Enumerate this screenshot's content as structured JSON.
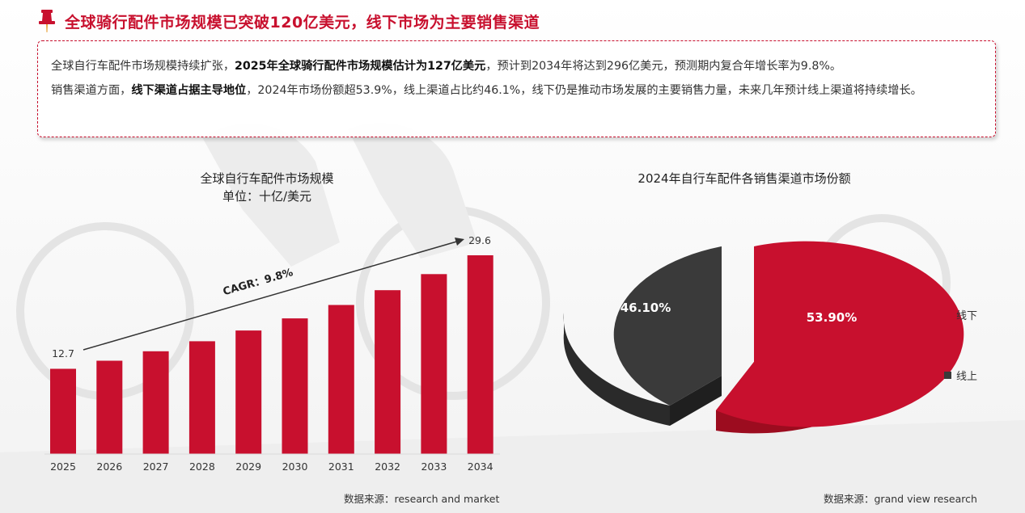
{
  "header": {
    "title": "全球骑行配件市场规模已突破120亿美元，线下市场为主要销售渠道"
  },
  "summary": {
    "p1_a": "全球自行车配件市场规模持续扩张，",
    "p1_b": "2025年全球骑行配件市场规模估计为127亿美元",
    "p1_c": "，预计到2034年将达到296亿美元，预测期内复合年增长率为9.8%。",
    "p2_a": "销售渠道方面，",
    "p2_b": "线下渠道占据主导地位",
    "p2_c": "，2024年市场份额超53.9%，线上渠道占比约46.1%，线下仍是推动市场发展的主要销售力量，未来几年预计线上渠道将持续增长。"
  },
  "bar_chart": {
    "title": "全球自行车配件市场规模",
    "subtitle": "单位：十亿/美元",
    "cagr_label": "CAGR：9.8%",
    "first_label": "12.7",
    "last_label": "29.6",
    "source": "数据来源：research and market",
    "color": "#c8102e"
  },
  "pie_chart": {
    "title": "2024年自行车配件各销售渠道市场份额",
    "source": "数据来源：grand view research",
    "slices": [
      {
        "label": "线下",
        "value_label": "53.90%",
        "color": "#c8102e"
      },
      {
        "label": "线上",
        "value_label": "46.10%",
        "color": "#3a3a3a"
      }
    ]
  },
  "chart_data": [
    {
      "type": "bar",
      "title": "全球自行车配件市场规模",
      "subtitle": "单位：十亿/美元",
      "categories": [
        "2025",
        "2026",
        "2027",
        "2028",
        "2029",
        "2030",
        "2031",
        "2032",
        "2033",
        "2034"
      ],
      "values": [
        12.7,
        13.9,
        15.3,
        16.8,
        18.4,
        20.2,
        22.2,
        24.4,
        26.8,
        29.6
      ],
      "ylim": [
        0,
        32
      ],
      "annotation": "CAGR：9.8%",
      "xlabel": "",
      "ylabel": ""
    },
    {
      "type": "pie",
      "title": "2024年自行车配件各销售渠道市场份额",
      "labels": [
        "线下",
        "线上"
      ],
      "values": [
        53.9,
        46.1
      ]
    }
  ]
}
